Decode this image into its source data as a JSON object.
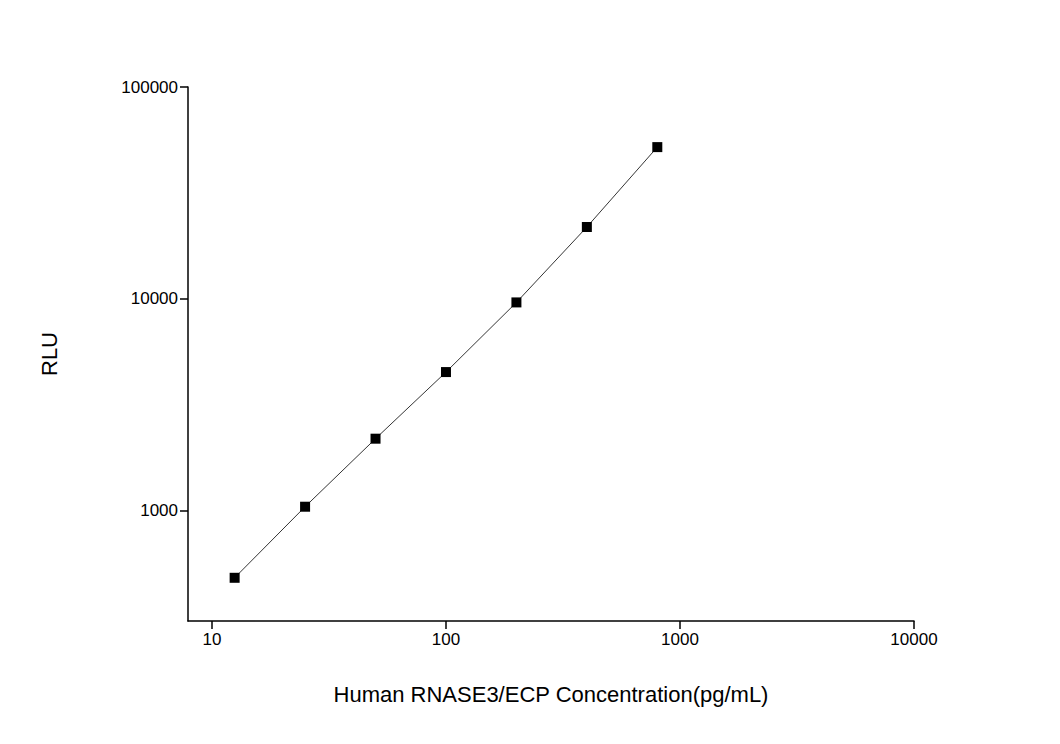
{
  "chart_data": {
    "type": "line",
    "x_label": "Human RNASE3/ECP Concentration(pg/mL)",
    "y_label": "RLU",
    "x": [
      12.5,
      25,
      50,
      100,
      200,
      400,
      800
    ],
    "values": [
      480,
      1040,
      2180,
      4500,
      9600,
      21800,
      52000
    ],
    "color": "#000000",
    "marker": "square",
    "line_style": "solid",
    "log": true,
    "xlim": [
      7.9,
      10000
    ],
    "ylim": [
      300,
      100000
    ],
    "xticks": [
      10,
      100,
      1000,
      10000
    ],
    "yticks": [
      1000,
      10000,
      100000
    ],
    "grid": false
  }
}
